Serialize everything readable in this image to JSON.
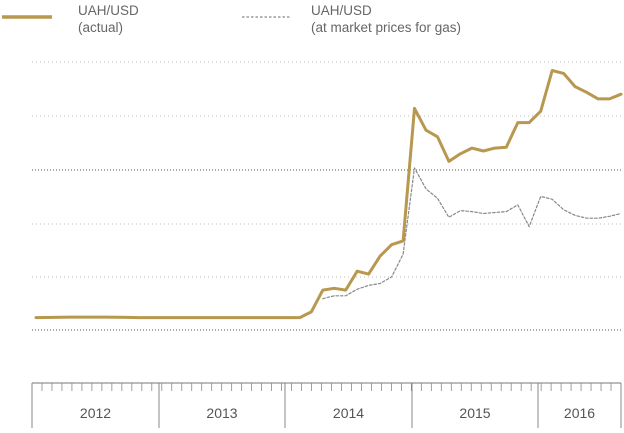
{
  "chart_data": {
    "type": "line",
    "title": "",
    "xlabel": "",
    "ylabel": "",
    "grid": true,
    "legend_position": "top-left",
    "x_tick_labels": [
      "2012",
      "2013",
      "2014",
      "2015",
      "2016"
    ],
    "series": [
      {
        "name": "UAH/USD\n(actual)",
        "color": "#b8974f",
        "style": "solid",
        "points": [
          [
            "2012-01",
            8.0
          ],
          [
            "2012-04",
            8.05
          ],
          [
            "2012-07",
            8.05
          ],
          [
            "2012-10",
            8.0
          ],
          [
            "2013-01",
            8.0
          ],
          [
            "2013-04",
            8.0
          ],
          [
            "2013-07",
            8.0
          ],
          [
            "2013-10",
            8.0
          ],
          [
            "2013-12",
            8.0
          ],
          [
            "2014-01",
            8.6
          ],
          [
            "2014-02",
            10.9
          ],
          [
            "2014-03",
            11.1
          ],
          [
            "2014-04",
            10.9
          ],
          [
            "2014-05",
            12.9
          ],
          [
            "2014-06",
            12.6
          ],
          [
            "2014-07",
            14.5
          ],
          [
            "2014-08",
            15.7
          ],
          [
            "2014-09",
            16.1
          ],
          [
            "2014-10",
            30.1
          ],
          [
            "2014-11",
            27.8
          ],
          [
            "2014-12",
            27.1
          ],
          [
            "2015-01",
            24.5
          ],
          [
            "2015-02",
            25.3
          ],
          [
            "2015-03",
            25.9
          ],
          [
            "2015-04",
            25.6
          ],
          [
            "2015-05",
            25.9
          ],
          [
            "2015-06",
            26.0
          ],
          [
            "2015-07",
            28.6
          ],
          [
            "2015-08",
            28.6
          ],
          [
            "2015-09",
            29.8
          ],
          [
            "2015-10",
            34.1
          ],
          [
            "2015-11",
            33.8
          ],
          [
            "2015-12",
            32.4
          ],
          [
            "2016-01",
            31.8
          ],
          [
            "2016-02",
            31.1
          ],
          [
            "2016-03",
            31.1
          ],
          [
            "2016-04",
            31.6
          ]
        ]
      },
      {
        "name": "UAH/USD\n(at market prices for gas)",
        "color": "#888888",
        "style": "dashed",
        "points": [
          [
            "2014-02",
            10.0
          ],
          [
            "2014-03",
            10.3
          ],
          [
            "2014-04",
            10.3
          ],
          [
            "2014-05",
            11.0
          ],
          [
            "2014-06",
            11.4
          ],
          [
            "2014-07",
            11.6
          ],
          [
            "2014-08",
            12.3
          ],
          [
            "2014-09",
            14.7
          ],
          [
            "2014-10",
            23.8
          ],
          [
            "2014-11",
            21.6
          ],
          [
            "2014-12",
            20.6
          ],
          [
            "2015-01",
            18.6
          ],
          [
            "2015-02",
            19.3
          ],
          [
            "2015-03",
            19.2
          ],
          [
            "2015-04",
            19.0
          ],
          [
            "2015-05",
            19.1
          ],
          [
            "2015-06",
            19.2
          ],
          [
            "2015-07",
            19.9
          ],
          [
            "2015-08",
            17.6
          ],
          [
            "2015-09",
            20.8
          ],
          [
            "2015-10",
            20.5
          ],
          [
            "2015-11",
            19.4
          ],
          [
            "2015-12",
            18.8
          ],
          [
            "2016-01",
            18.5
          ],
          [
            "2016-02",
            18.5
          ],
          [
            "2016-03",
            18.7
          ],
          [
            "2016-04",
            19.0
          ]
        ]
      }
    ]
  }
}
